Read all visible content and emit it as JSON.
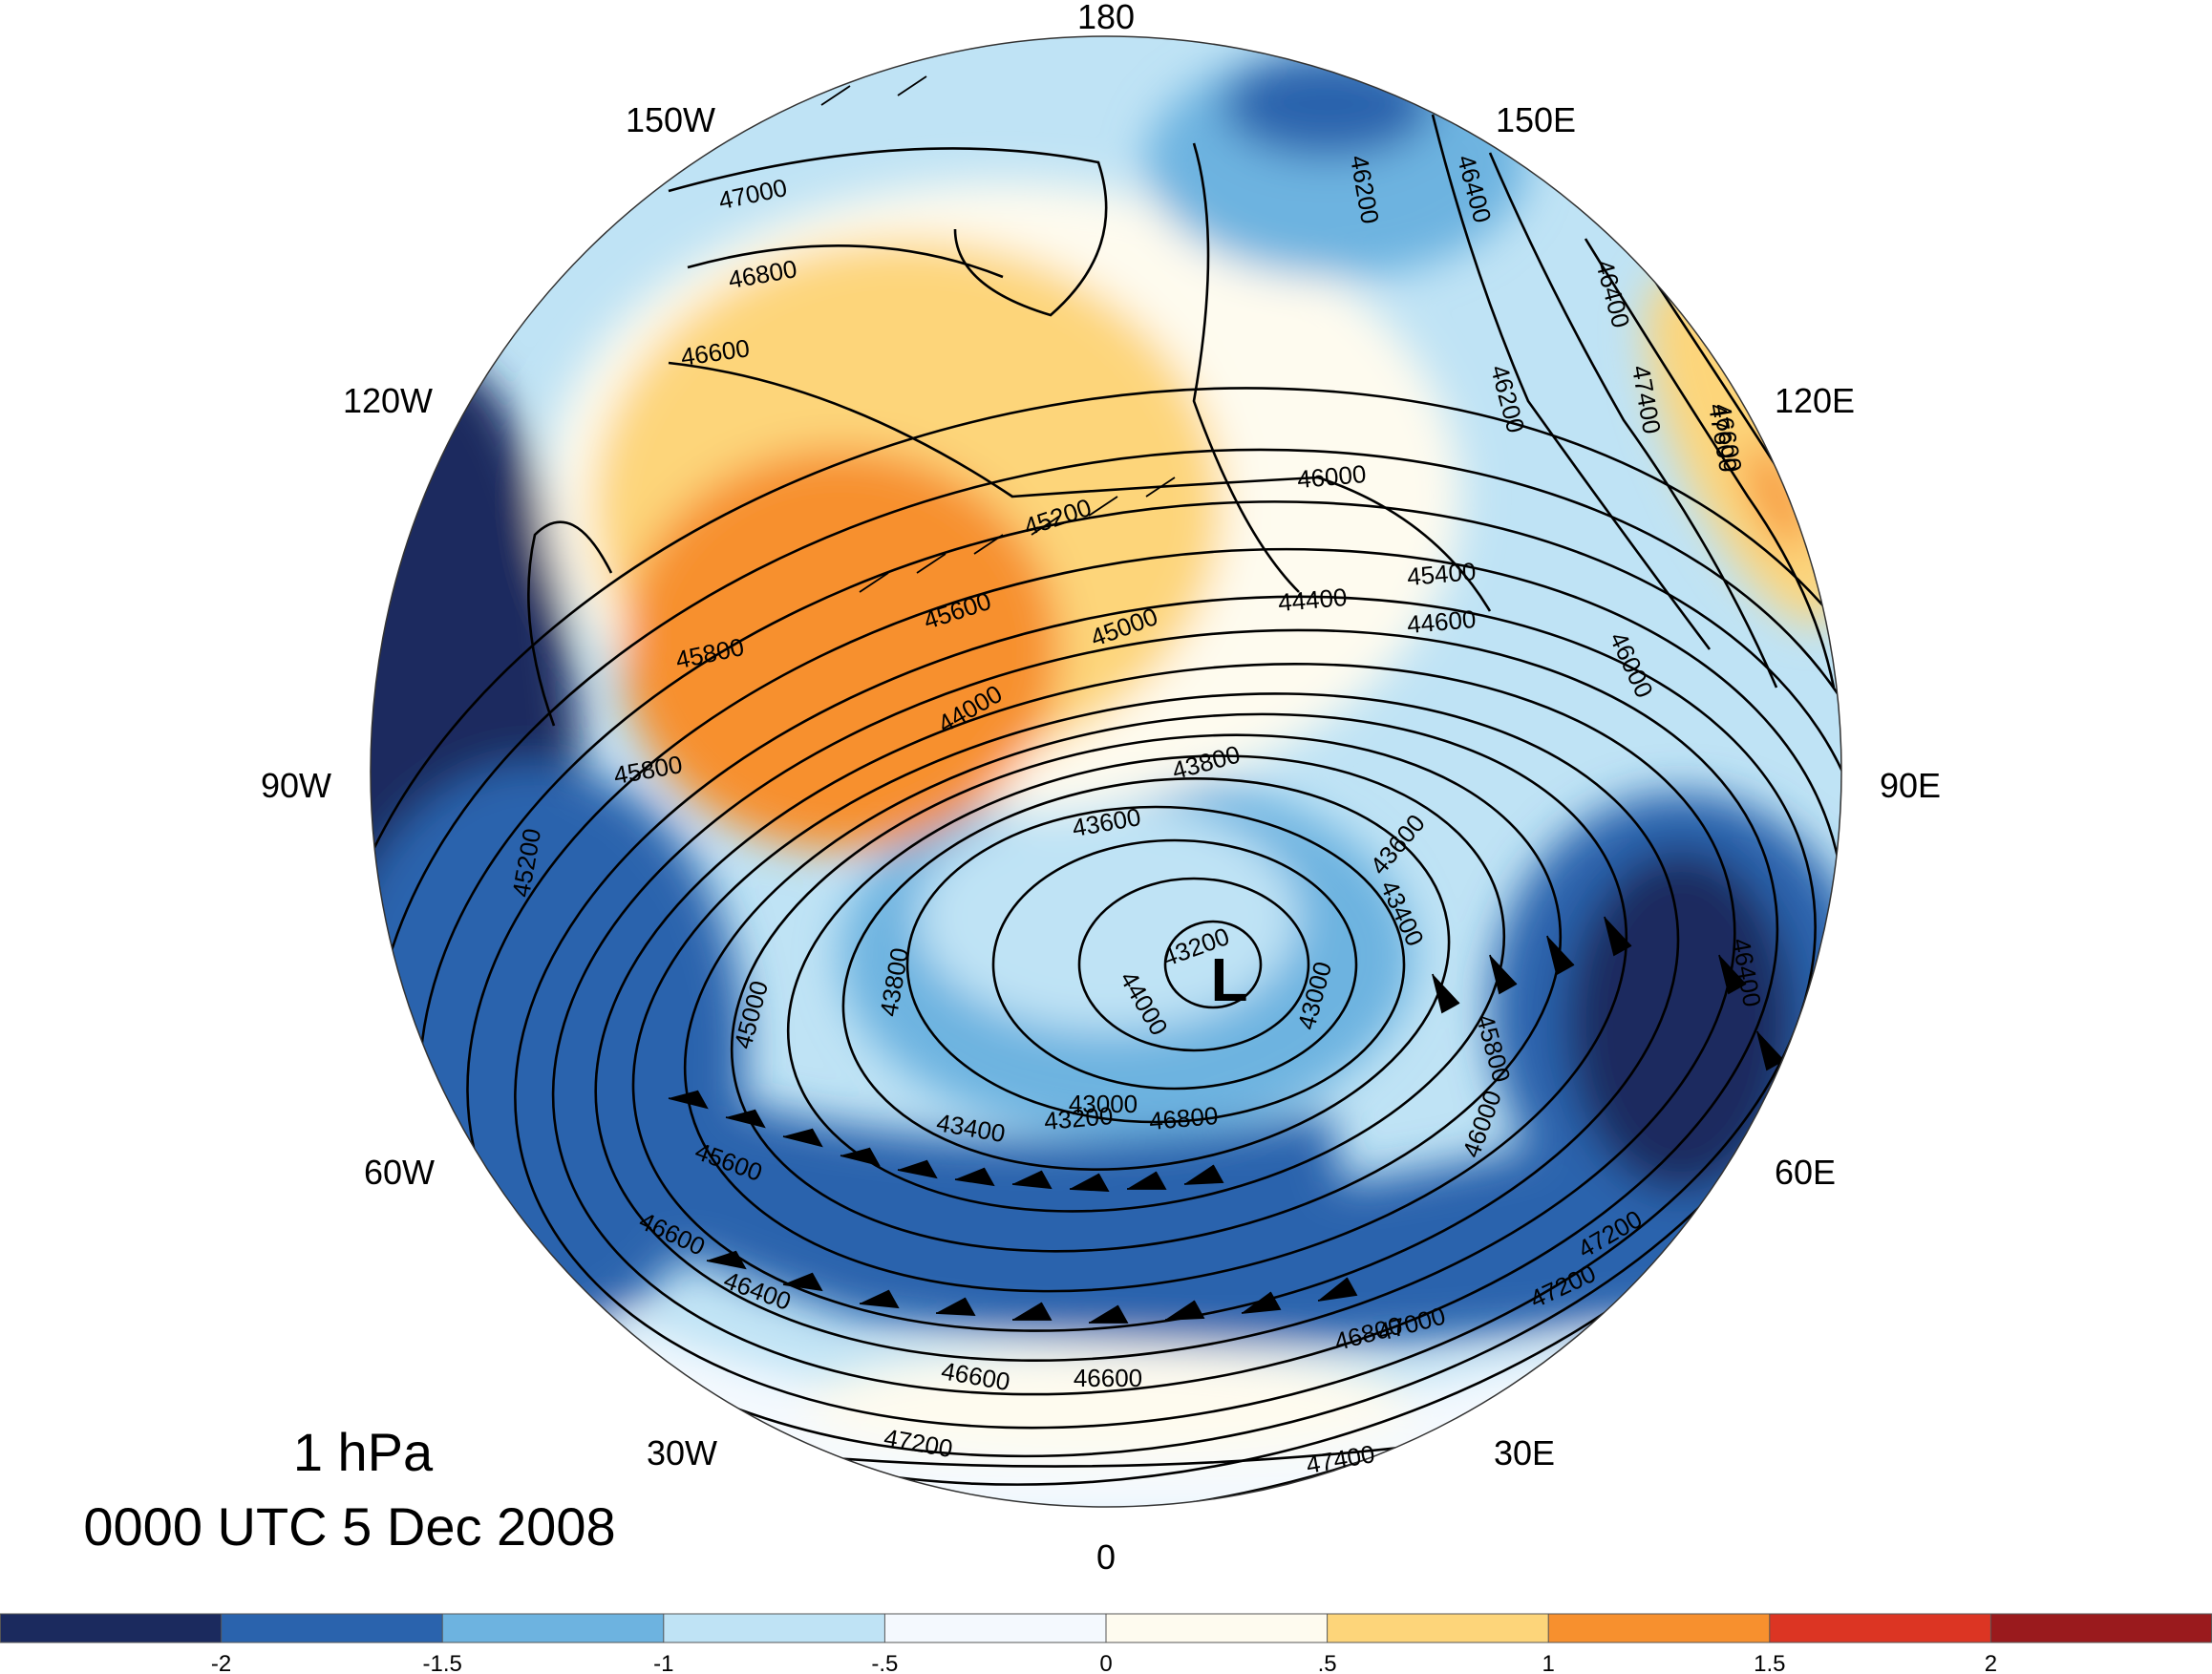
{
  "title": {
    "level": "1 hPa",
    "time": "0000 UTC 5 Dec 2008"
  },
  "longitude_labels": [
    "180",
    "150E",
    "120E",
    "90E",
    "60E",
    "30E",
    "0",
    "30W",
    "60W",
    "90W",
    "120W",
    "150W"
  ],
  "low_center": "L",
  "contour_labels": [
    "47000",
    "46800",
    "46600",
    "46400",
    "46200",
    "46000",
    "45800",
    "45600",
    "45400",
    "45200",
    "45000",
    "44600",
    "44400",
    "44000",
    "43800",
    "43600",
    "43400",
    "43200",
    "43000",
    "47200",
    "47400",
    "47600",
    "46600",
    "46400",
    "46200",
    "46000",
    "45800",
    "45200",
    "45000",
    "44000",
    "43600",
    "43000",
    "43200",
    "43400",
    "43800",
    "46600",
    "47200",
    "46600",
    "46800",
    "47000",
    "47200",
    "47400",
    "45600",
    "46400",
    "46600",
    "46800",
    "45800",
    "46000",
    "46400"
  ],
  "colorbar": {
    "colors": [
      "#1b2a5e",
      "#2a63ad",
      "#6db3e0",
      "#bfe3f5",
      "#f4f9fe",
      "#fefbef",
      "#fdd57a",
      "#f7902e",
      "#dc3523",
      "#9a1a1d"
    ],
    "tick_labels": [
      "-2",
      "-1.5",
      "-1",
      "-.5",
      "0",
      ".5",
      "1",
      "1.5",
      "2"
    ]
  }
}
